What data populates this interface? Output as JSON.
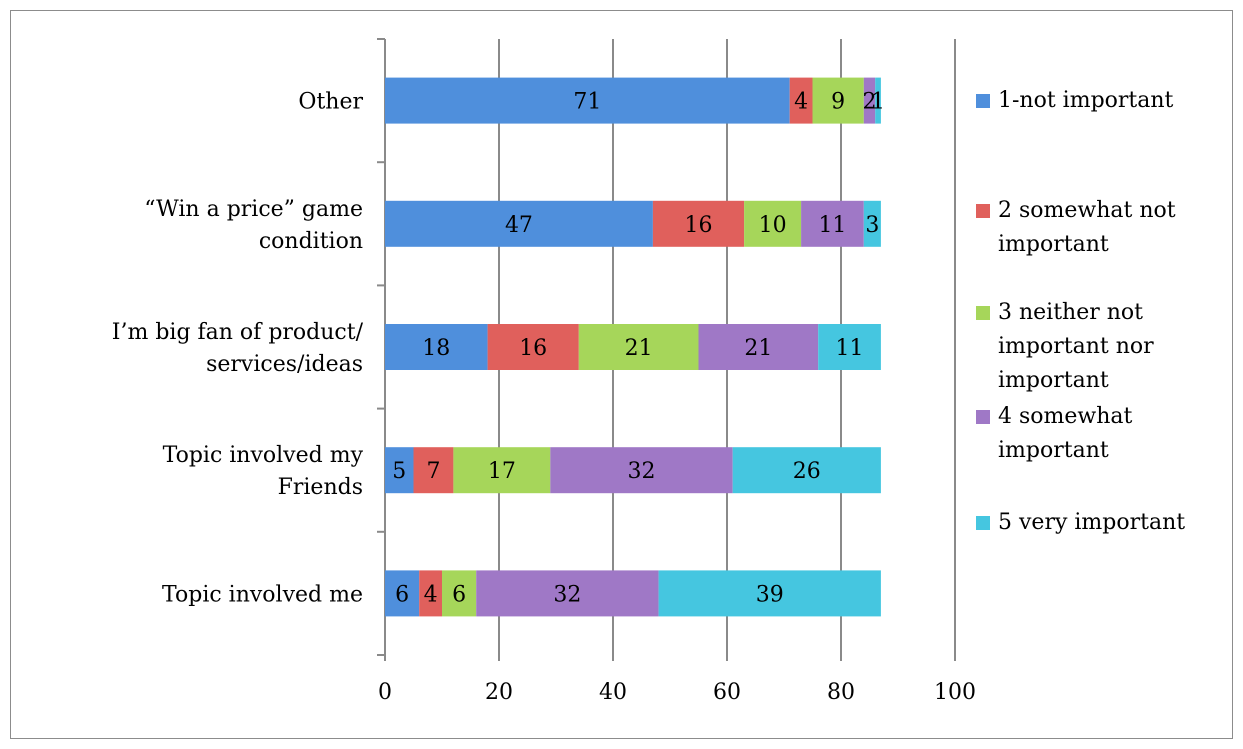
{
  "chart_data": {
    "type": "bar",
    "orientation": "horizontal",
    "stacked": true,
    "title": "",
    "xlabel": "",
    "ylabel": "",
    "xlim": [
      0,
      100
    ],
    "xticks": [
      "0",
      "20",
      "40",
      "60",
      "80",
      "100"
    ],
    "grid": true,
    "legend_position": "right",
    "categories": [
      [
        "Other"
      ],
      [
        "“Win a price” game",
        "condition"
      ],
      [
        "I’m big fan of product/",
        "services/ideas"
      ],
      [
        "Topic involved my",
        "Friends"
      ],
      [
        "Topic involved me"
      ]
    ],
    "series": [
      {
        "name": "1-not important",
        "color": "#4f8fdc",
        "values": [
          71,
          47,
          18,
          5,
          6
        ]
      },
      {
        "name": "2 somewhat not important",
        "color": "#e0605c",
        "values": [
          4,
          16,
          16,
          7,
          4
        ]
      },
      {
        "name": "3 neither not important nor important",
        "color": "#a6d65a",
        "values": [
          9,
          10,
          21,
          17,
          6
        ]
      },
      {
        "name": "4 somewhat important",
        "color": "#9f78c6",
        "values": [
          2,
          11,
          21,
          32,
          32
        ]
      },
      {
        "name": "5 very important",
        "color": "#45c6e0",
        "values": [
          1,
          3,
          11,
          26,
          39
        ]
      }
    ],
    "legend_lines": [
      [
        "1-not important"
      ],
      [
        "2 somewhat not",
        "important"
      ],
      [
        "3 neither not",
        "important nor",
        "important"
      ],
      [
        "4 somewhat",
        "important"
      ],
      [
        "5 very important"
      ]
    ]
  }
}
